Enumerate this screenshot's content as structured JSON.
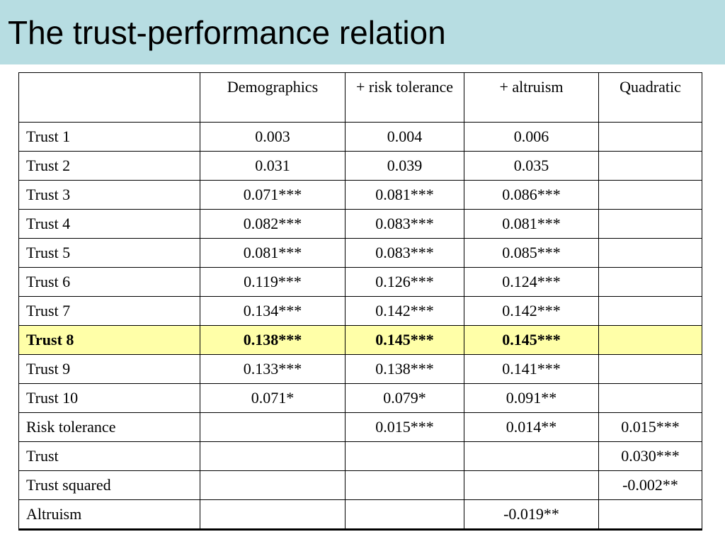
{
  "title": "The trust-performance relation",
  "table": {
    "headers": [
      "",
      "Demographics",
      "+ risk tolerance",
      "+ altruism",
      "Quadratic"
    ],
    "rows": [
      {
        "label": "Trust 1",
        "cells": [
          "0.003",
          "0.004",
          "0.006",
          ""
        ]
      },
      {
        "label": "Trust 2",
        "cells": [
          "0.031",
          "0.039",
          "0.035",
          ""
        ]
      },
      {
        "label": "Trust 3",
        "cells": [
          "0.071***",
          "0.081***",
          "0.086***",
          ""
        ]
      },
      {
        "label": "Trust 4",
        "cells": [
          "0.082***",
          "0.083***",
          "0.081***",
          ""
        ]
      },
      {
        "label": "Trust 5",
        "cells": [
          "0.081***",
          "0.083***",
          "0.085***",
          ""
        ]
      },
      {
        "label": "Trust 6",
        "cells": [
          "0.119***",
          "0.126***",
          "0.124***",
          ""
        ]
      },
      {
        "label": "Trust 7",
        "cells": [
          "0.134***",
          "0.142***",
          "0.142***",
          ""
        ]
      },
      {
        "label": "Trust 8",
        "cells": [
          "0.138***",
          "0.145***",
          "0.145***",
          ""
        ],
        "highlight": true
      },
      {
        "label": "Trust 9",
        "cells": [
          "0.133***",
          "0.138***",
          "0.141***",
          ""
        ]
      },
      {
        "label": "Trust 10",
        "cells": [
          "0.071*",
          "0.079*",
          "0.091**",
          ""
        ]
      },
      {
        "label": "Risk tolerance",
        "cells": [
          "",
          "0.015***",
          "0.014**",
          "0.015***"
        ]
      },
      {
        "label": "Trust",
        "cells": [
          "",
          "",
          "",
          "0.030***"
        ]
      },
      {
        "label": "Trust squared",
        "cells": [
          "",
          "",
          "",
          "-0.002**"
        ]
      },
      {
        "label": "Altruism",
        "cells": [
          "",
          "",
          "-0.019**",
          ""
        ]
      }
    ]
  },
  "colors": {
    "title_band": "#b7dde2",
    "highlight_row": "#ffffa8"
  }
}
